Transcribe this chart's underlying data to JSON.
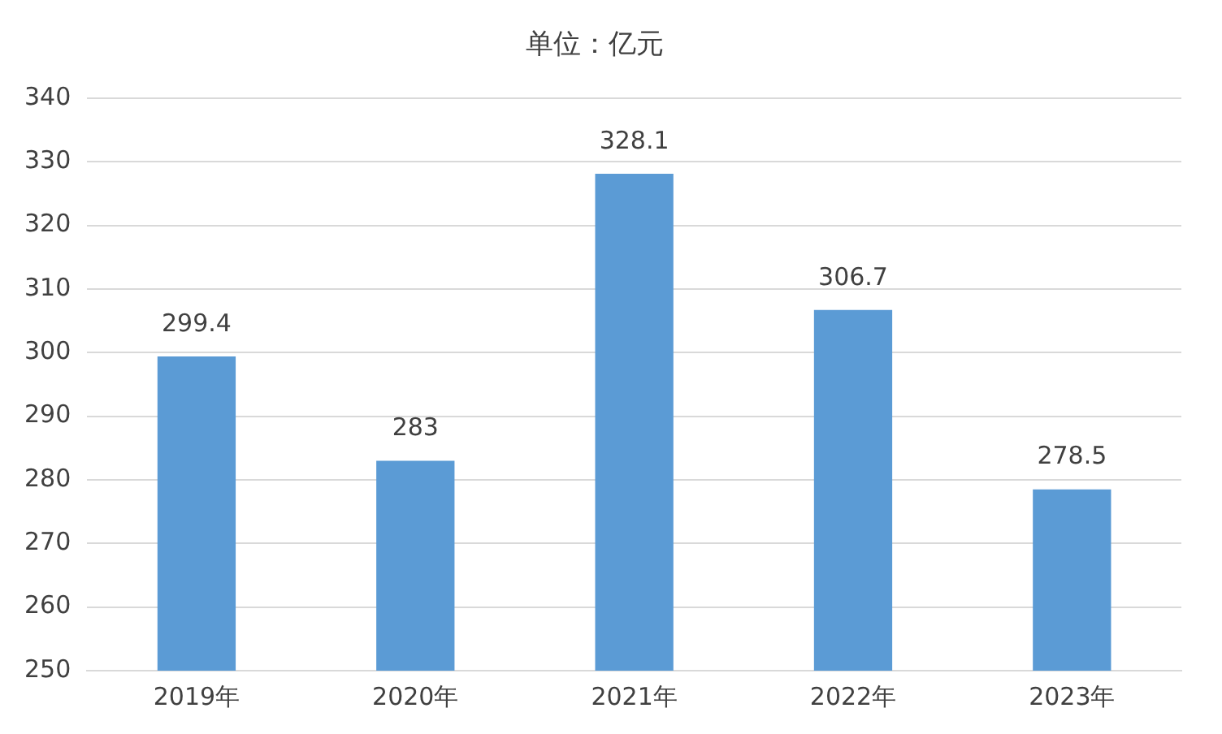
{
  "chart_data": {
    "type": "bar",
    "title": "单位：亿元",
    "categories": [
      "2019年",
      "2020年",
      "2021年",
      "2022年",
      "2023年"
    ],
    "values": [
      299.4,
      283,
      328.1,
      306.7,
      278.5
    ],
    "color": "#5b9bd5",
    "ylim": [
      250,
      340
    ],
    "yticks": [
      250,
      260,
      270,
      280,
      290,
      300,
      310,
      320,
      330,
      340
    ],
    "grid": "y",
    "legend": false,
    "data_labels": true
  }
}
